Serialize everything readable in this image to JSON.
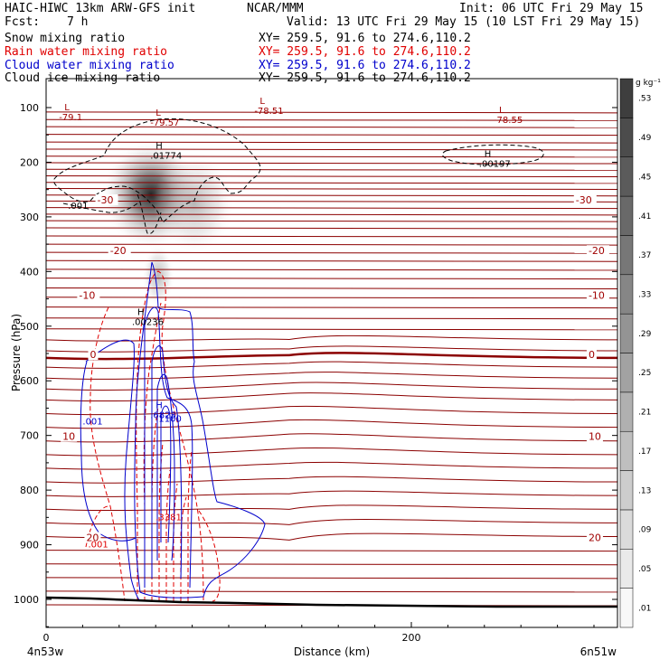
{
  "header": {
    "title_left": "HAIC-HIWC 13km ARW-GFS init",
    "title_mid": "NCAR/MMM",
    "init": "Init: 06 UTC Fri 29 May 15",
    "fcst_label": "Fcst:",
    "fcst_value": "7 h",
    "valid": "Valid: 13 UTC Fri 29 May 15 (10 LST Fri 29 May 15)"
  },
  "fields": [
    {
      "name": "Snow mixing ratio",
      "xy": "XY= 259.5, 91.6 to 274.6,110.2",
      "color": "#000000"
    },
    {
      "name": "Rain water mixing ratio",
      "xy": "XY= 259.5, 91.6 to 274.6,110.2",
      "color": "#e00000"
    },
    {
      "name": "Cloud water mixing ratio",
      "xy": "XY= 259.5, 91.6 to 274.6,110.2",
      "color": "#0000cc"
    },
    {
      "name": "Cloud ice mixing ratio",
      "xy": "XY= 259.5, 91.6 to 274.6,110.2",
      "color": "#000000"
    }
  ],
  "chart_data": {
    "type": "cross-section contour",
    "xlabel": "Distance (km)",
    "ylabel": "Pressure (hPa)",
    "xlim": [
      0,
      312
    ],
    "ylim": [
      1050,
      50
    ],
    "x_ticks": [
      0,
      200
    ],
    "y_ticks": [
      100,
      200,
      300,
      400,
      500,
      600,
      700,
      800,
      900,
      1000
    ],
    "endpoint_left": "4n53w",
    "endpoint_right": "6n51w",
    "colorbar": {
      "unit": "g kg⁻¹",
      "levels": [
        ".01",
        ".05",
        ".09",
        ".13",
        ".17",
        ".21",
        ".25",
        ".29",
        ".33",
        ".37",
        ".41",
        ".45",
        ".49",
        ".53"
      ]
    },
    "temperature_labels": [
      {
        "x": 28,
        "p": 272,
        "label": "-30"
      },
      {
        "x": 290,
        "p": 272,
        "label": "-30"
      },
      {
        "x": 35,
        "p": 365,
        "label": "-20"
      },
      {
        "x": 297,
        "p": 365,
        "label": "-20"
      },
      {
        "x": 18,
        "p": 447,
        "label": "-10"
      },
      {
        "x": 297,
        "p": 447,
        "label": "-10"
      },
      {
        "x": 24,
        "p": 555,
        "label": "0"
      },
      {
        "x": 297,
        "p": 555,
        "label": "0"
      },
      {
        "x": 9,
        "p": 705,
        "label": "10"
      },
      {
        "x": 297,
        "p": 705,
        "label": "10"
      },
      {
        "x": 22,
        "p": 890,
        "label": "20"
      },
      {
        "x": 297,
        "p": 890,
        "label": "20"
      }
    ],
    "extrema": [
      {
        "type": "L",
        "value": "-79.1",
        "x": 10,
        "p": 105,
        "color": "#a00000"
      },
      {
        "type": "L",
        "value": "-79.57",
        "x": 60,
        "p": 115,
        "color": "#a00000"
      },
      {
        "type": "L",
        "value": "-78.51",
        "x": 117,
        "p": 93,
        "color": "#a00000"
      },
      {
        "type": "L",
        "value": "-78.55",
        "x": 248,
        "p": 110,
        "color": "#a00000"
      },
      {
        "type": "H",
        "value": ".01774",
        "x": 60,
        "p": 175,
        "color": "#000000"
      },
      {
        "type": "H",
        "value": ".00197",
        "x": 240,
        "p": 190,
        "color": "#000000"
      },
      {
        "type": "H",
        "value": ".00236",
        "x": 50,
        "p": 480,
        "color": "#000000"
      },
      {
        "type": "H",
        "value": ".6823",
        "x": 60,
        "p": 650,
        "color": "#0000cc"
      }
    ],
    "contour_labels": [
      {
        "x": 12,
        "p": 285,
        "label": ".001",
        "color": "#000000"
      },
      {
        "x": 20,
        "p": 680,
        "label": ".001",
        "color": "#0000cc"
      },
      {
        "x": 23,
        "p": 905,
        "label": ".001",
        "color": "#e00000"
      },
      {
        "x": 60,
        "p": 675,
        "label": ".1100",
        "color": "#0000cc"
      },
      {
        "x": 60,
        "p": 855,
        "label": ".3381",
        "color": "#e00000"
      }
    ]
  }
}
